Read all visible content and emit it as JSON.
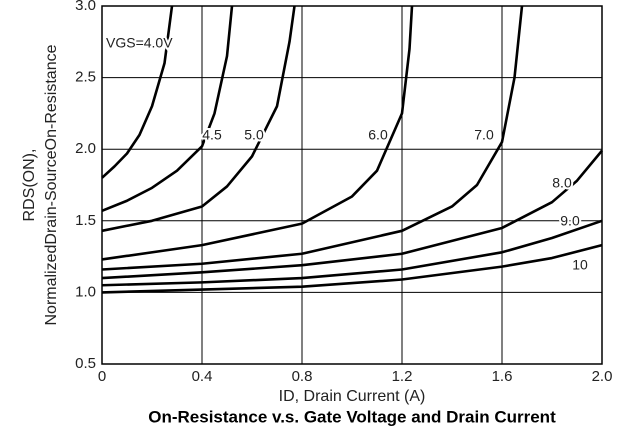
{
  "chart_data": {
    "type": "line",
    "title": "On-Resistance v.s. Gate Voltage and Drain Current",
    "x_label": "ID, Drain Current (A)",
    "y_label": [
      "RDS(ON),",
      "NormalizedDrain-SourceOn-Resistance"
    ],
    "color": "#000000",
    "grid": true,
    "xlim": [
      0,
      2
    ],
    "ylim": [
      0.5,
      3
    ],
    "xticks": [
      0,
      0.4,
      0.8,
      1.2,
      1.6,
      {
        "value": 2,
        "label": "2.0"
      }
    ],
    "yticks": [
      0.5,
      {
        "value": 1,
        "label": "1.0"
      },
      1.5,
      {
        "value": 2,
        "label": "2.0"
      },
      2.5,
      {
        "value": 3,
        "label": "3.0"
      }
    ],
    "series": [
      {
        "name": "VGS=4.0V",
        "x": [
          0,
          0.05,
          0.1,
          0.15,
          0.2,
          0.25,
          0.28
        ],
        "values": [
          1.8,
          1.88,
          1.97,
          2.1,
          2.3,
          2.6,
          3.0
        ]
      },
      {
        "name": "4.5",
        "x": [
          0,
          0.1,
          0.2,
          0.3,
          0.4,
          0.45,
          0.5,
          0.52
        ],
        "values": [
          1.57,
          1.64,
          1.73,
          1.85,
          2.02,
          2.25,
          2.65,
          3.0
        ]
      },
      {
        "name": "5.0",
        "x": [
          0,
          0.2,
          0.4,
          0.5,
          0.6,
          0.7,
          0.75,
          0.77
        ],
        "values": [
          1.43,
          1.5,
          1.6,
          1.74,
          1.95,
          2.3,
          2.75,
          3.0
        ]
      },
      {
        "name": "6.0",
        "x": [
          0,
          0.4,
          0.8,
          1.0,
          1.1,
          1.2,
          1.23,
          1.24
        ],
        "values": [
          1.23,
          1.33,
          1.48,
          1.67,
          1.85,
          2.25,
          2.7,
          3.0
        ]
      },
      {
        "name": "7.0",
        "x": [
          0,
          0.4,
          0.8,
          1.2,
          1.4,
          1.5,
          1.6,
          1.65,
          1.68
        ],
        "values": [
          1.16,
          1.2,
          1.27,
          1.43,
          1.6,
          1.75,
          2.05,
          2.5,
          3.0
        ]
      },
      {
        "name": "8.0",
        "x": [
          0,
          0.4,
          0.8,
          1.2,
          1.6,
          1.8,
          1.9,
          2.0
        ],
        "values": [
          1.1,
          1.14,
          1.19,
          1.27,
          1.45,
          1.63,
          1.78,
          1.99
        ]
      },
      {
        "name": "9.0",
        "x": [
          0,
          0.4,
          0.8,
          1.2,
          1.6,
          1.8,
          2.0
        ],
        "values": [
          1.05,
          1.07,
          1.1,
          1.16,
          1.28,
          1.38,
          1.5
        ]
      },
      {
        "name": "10",
        "x": [
          0,
          0.4,
          0.8,
          1.2,
          1.6,
          1.8,
          2.0
        ],
        "values": [
          1.0,
          1.02,
          1.04,
          1.09,
          1.18,
          1.24,
          1.33
        ]
      }
    ]
  }
}
